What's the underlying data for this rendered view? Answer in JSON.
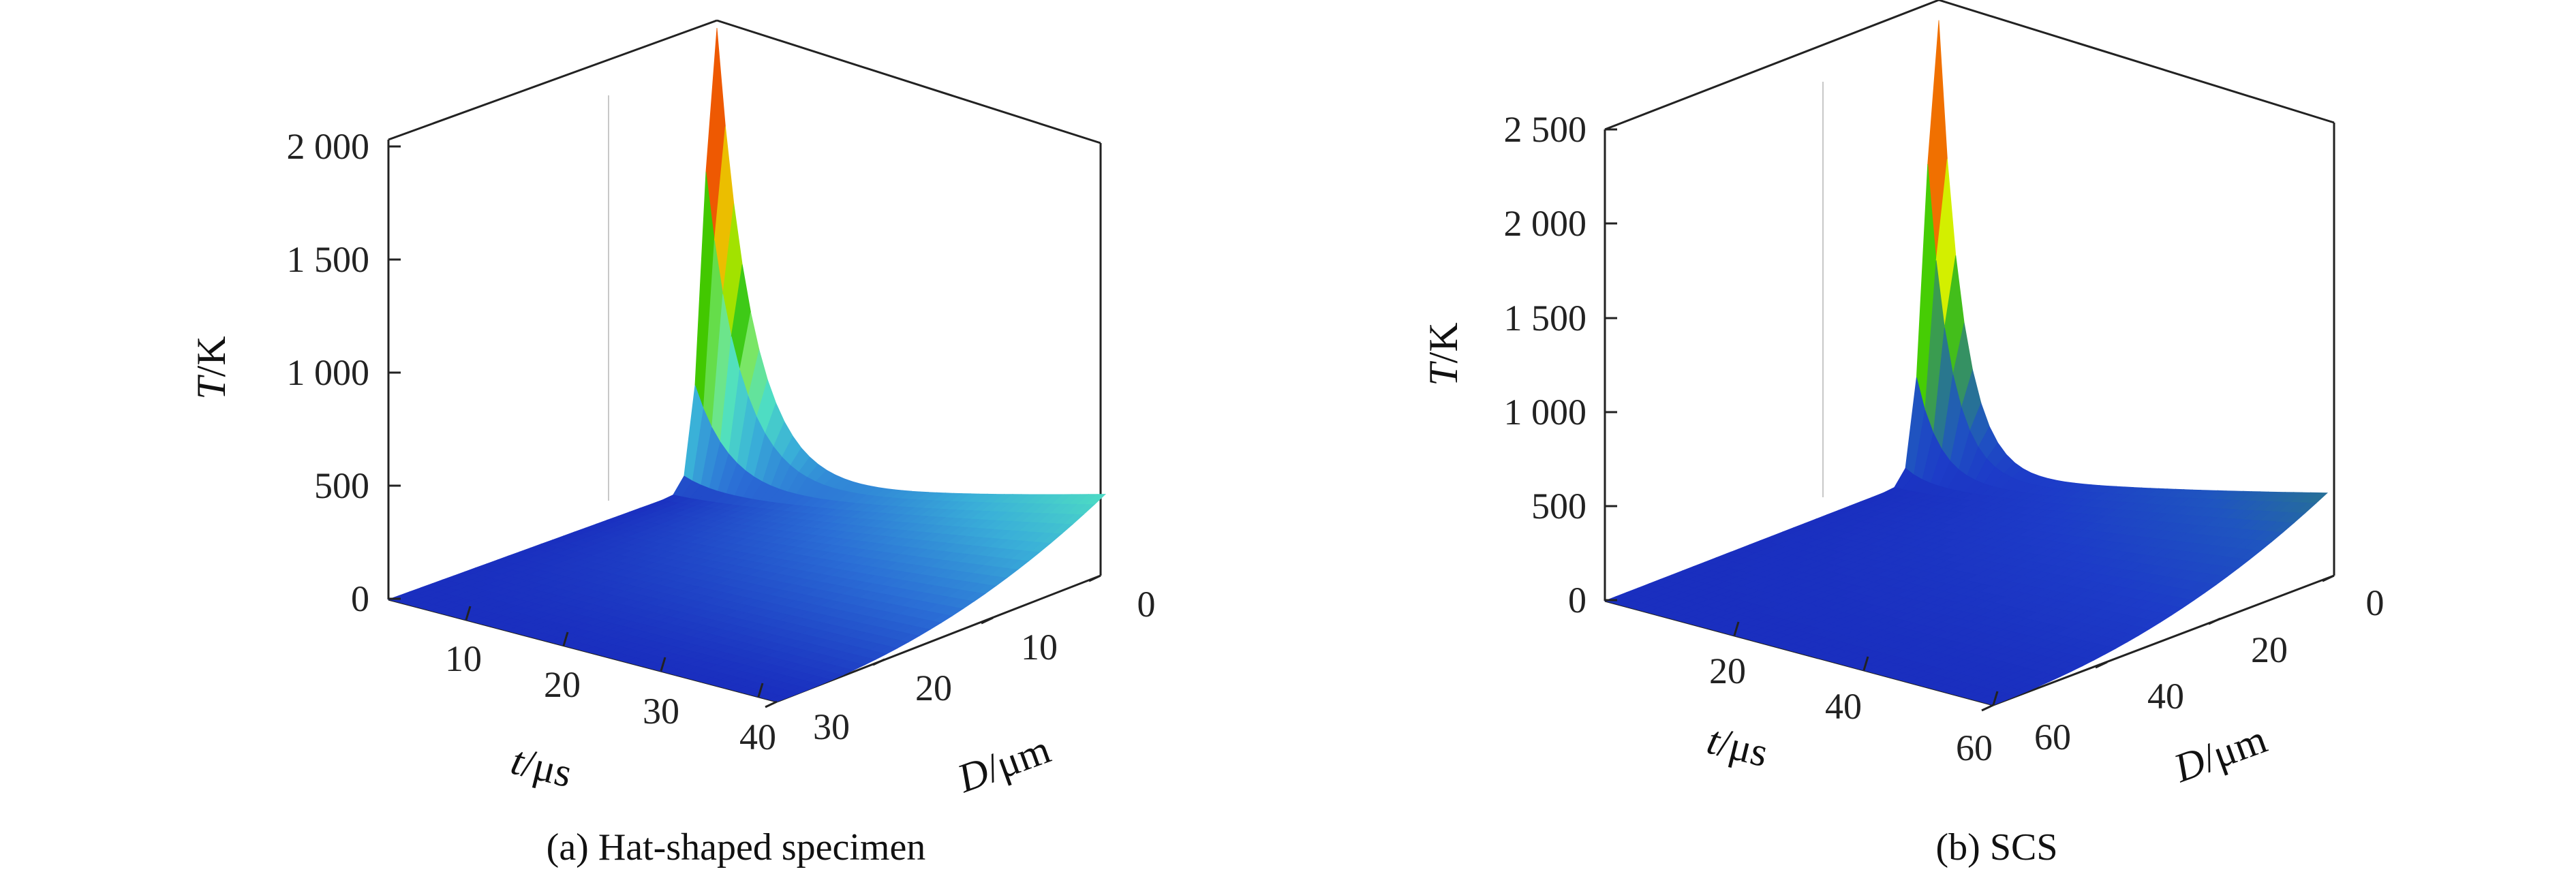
{
  "chart_data": [
    {
      "type": "surface3d",
      "caption": "(a) Hat-shaped specimen",
      "zlabel": {
        "italic": "T",
        "rest": "/K"
      },
      "xlabel": {
        "italic": "t",
        "rest": "/μs"
      },
      "ylabel": {
        "italic": "D",
        "rest": "/μm"
      },
      "z_ticks": [
        "0",
        "500",
        "1 000",
        "1 500",
        "2 000"
      ],
      "x_ticks": [
        "10",
        "20",
        "30",
        "40"
      ],
      "y_ticks": [
        "0",
        "10",
        "20",
        "30"
      ],
      "z_range": [
        0,
        2000
      ],
      "x_range": [
        0,
        40
      ],
      "y_range": [
        0,
        30
      ],
      "peak_temperature": 2000,
      "end_temperature_at_D0": 390,
      "colors": [
        "#1a2fbf",
        "#2b6fd6",
        "#3ab0d8",
        "#4fe0c2",
        "#7de86a",
        "#2cc200",
        "#d8f000",
        "#f0b000",
        "#f06000",
        "#d81818",
        "#8a0a0a"
      ]
    },
    {
      "type": "surface3d",
      "caption": "(b) SCS",
      "zlabel": {
        "italic": "T",
        "rest": "/K"
      },
      "xlabel": {
        "italic": "t",
        "rest": "/μs"
      },
      "ylabel": {
        "italic": "D",
        "rest": "/μm"
      },
      "z_ticks": [
        "0",
        "500",
        "1 000",
        "1 500",
        "2 000",
        "2 500"
      ],
      "x_ticks": [
        "20",
        "40",
        "60"
      ],
      "y_ticks": [
        "0",
        "20",
        "40",
        "60"
      ],
      "z_range": [
        0,
        2500
      ],
      "x_range": [
        0,
        60
      ],
      "y_range": [
        0,
        60
      ],
      "peak_temperature": 2400,
      "end_temperature_at_D0": 440,
      "colors": [
        "#1a2fbf",
        "#1d3cc8",
        "#1f55c0",
        "#2a7a8a",
        "#3fa640",
        "#46d000",
        "#d8f000",
        "#f0b000",
        "#f06000",
        "#d81818",
        "#8a0a0a"
      ]
    }
  ]
}
